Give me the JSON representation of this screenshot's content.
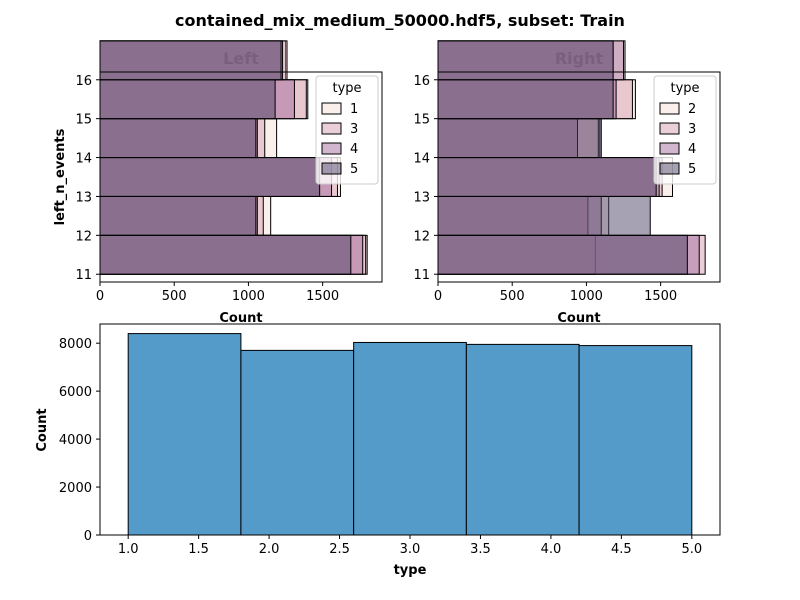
{
  "figure_title": "contained_mix_medium_50000.hdf5, subset: Train",
  "colors": {
    "hue": {
      "1": "#f6e0d7",
      "2": "#f6e0d7",
      "3": "#d69fb3",
      "4": "#a46d9e",
      "5": "#4d4468"
    },
    "bottom_bar": "#4c96c6"
  },
  "chart_data": [
    {
      "type": "bar",
      "orientation": "horizontal",
      "title": "Left",
      "xlabel": "Count",
      "ylabel": "left_n_events",
      "xlim": [
        0,
        1900
      ],
      "ylim": [
        10.8,
        16.2
      ],
      "xticks": [
        0,
        500,
        1000,
        1500
      ],
      "yticks": [
        11,
        12,
        13,
        14,
        15,
        16
      ],
      "categories": [
        11,
        12,
        13,
        14,
        15,
        16
      ],
      "legend": {
        "title": "type",
        "position": "upper right",
        "entries": [
          "1",
          "3",
          "4",
          "5"
        ]
      },
      "series": [
        {
          "name": "1",
          "values": [
            1800,
            1150,
            1620,
            1190,
            1400,
            1250
          ]
        },
        {
          "name": "3",
          "values": [
            1790,
            1100,
            1600,
            1110,
            1390,
            1260
          ]
        },
        {
          "name": "4",
          "values": [
            1770,
            1060,
            1560,
            1060,
            1310,
            1230
          ]
        },
        {
          "name": "5",
          "values": [
            1690,
            1050,
            1480,
            1050,
            1180,
            1220
          ]
        }
      ]
    },
    {
      "type": "bar",
      "orientation": "horizontal",
      "title": "Right",
      "xlabel": "Count",
      "ylabel": "",
      "xlim": [
        0,
        1900
      ],
      "ylim": [
        10.8,
        16.2
      ],
      "xticks": [
        0,
        500,
        1000,
        1500
      ],
      "yticks": [
        11,
        12,
        13,
        14,
        15,
        16
      ],
      "categories": [
        11,
        12,
        13,
        14,
        15,
        16
      ],
      "legend": {
        "title": "type",
        "position": "upper right",
        "entries": [
          "2",
          "3",
          "4",
          "5"
        ]
      },
      "series": [
        {
          "name": "2",
          "values": [
            1060,
            1150,
            1580,
            1090,
            1330,
            1260
          ]
        },
        {
          "name": "3",
          "values": [
            1800,
            1010,
            1510,
            1080,
            1310,
            1180
          ]
        },
        {
          "name": "4",
          "values": [
            1760,
            1100,
            1490,
            940,
            1200,
            1250
          ]
        },
        {
          "name": "5",
          "values": [
            1680,
            1430,
            1470,
            1100,
            1180,
            1180
          ]
        }
      ]
    },
    {
      "type": "bar",
      "orientation": "vertical",
      "title": "",
      "xlabel": "type",
      "ylabel": "Count",
      "xlim": [
        0.8,
        5.2
      ],
      "ylim": [
        0,
        8800
      ],
      "xticks": [
        "1.0",
        "1.5",
        "2.0",
        "2.5",
        "3.0",
        "3.5",
        "4.0",
        "4.5",
        "5.0"
      ],
      "yticks": [
        0,
        2000,
        4000,
        6000,
        8000
      ],
      "bins": [
        [
          1.0,
          1.8
        ],
        [
          1.8,
          2.6
        ],
        [
          2.6,
          3.4
        ],
        [
          3.4,
          4.2
        ],
        [
          4.2,
          5.0
        ]
      ],
      "values": [
        8400,
        7700,
        8030,
        7950,
        7900
      ]
    }
  ]
}
